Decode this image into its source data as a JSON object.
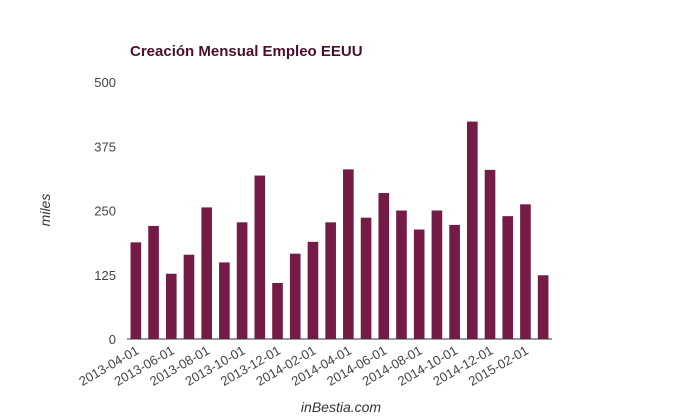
{
  "chart_data": {
    "type": "bar",
    "title": "Creación Mensual Empleo EEUU",
    "xlabel": "inBestia.com",
    "ylabel": "miles",
    "ylim": [
      0,
      500
    ],
    "yticks": [
      "0",
      "125",
      "250",
      "375",
      "500"
    ],
    "grid": false,
    "legend": "none",
    "categories": [
      "2013-04-01",
      "2013-05-01",
      "2013-06-01",
      "2013-07-01",
      "2013-08-01",
      "2013-09-01",
      "2013-10-01",
      "2013-11-01",
      "2013-12-01",
      "2014-01-01",
      "2014-02-01",
      "2014-03-01",
      "2014-04-01",
      "2014-05-01",
      "2014-06-01",
      "2014-07-01",
      "2014-08-01",
      "2014-09-01",
      "2014-10-01",
      "2014-11-01",
      "2014-12-01",
      "2015-01-01",
      "2015-02-01",
      "2015-03-01"
    ],
    "xtick_labels_shown": [
      "2013-04-01",
      "2013-06-01",
      "2013-08-01",
      "2013-10-01",
      "2013-12-01",
      "2014-02-01",
      "2014-04-01",
      "2014-06-01",
      "2014-08-01",
      "2014-10-01",
      "2014-12-01",
      "2015-02-01"
    ],
    "values": [
      188,
      220,
      127,
      164,
      256,
      149,
      227,
      318,
      109,
      166,
      189,
      227,
      330,
      236,
      284,
      250,
      213,
      250,
      222,
      423,
      329,
      239,
      262,
      124
    ]
  },
  "colors": {
    "bar": "#751c46",
    "title": "#4a0f2e",
    "axis": "#333333"
  }
}
